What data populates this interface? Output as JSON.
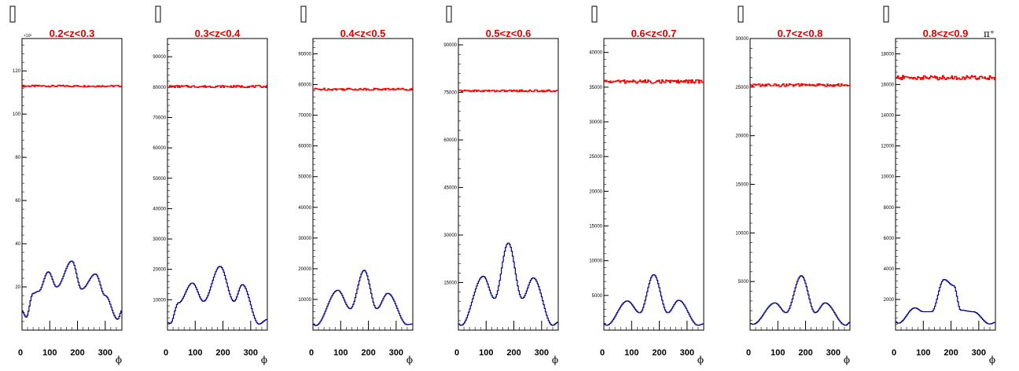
{
  "colors": {
    "flat_series": "#ff0000",
    "modulated_series": "#00008b",
    "title": "#e00000",
    "axis": "#000000"
  },
  "chart_data": [
    {
      "type": "line",
      "title": "0.2<z<0.3",
      "annotation": "",
      "multiplier": "×10³",
      "xlabel": "ϕ",
      "xlim": [
        0,
        360
      ],
      "ylim": [
        0,
        135
      ],
      "x_ticks": [
        "0",
        "100",
        "200",
        "300"
      ],
      "y_ticks": [
        {
          "v": 20,
          "t": "20"
        },
        {
          "v": 40,
          "t": "40"
        },
        {
          "v": 60,
          "t": "60"
        },
        {
          "v": 80,
          "t": "80"
        },
        {
          "v": 100,
          "t": "100"
        },
        {
          "v": 120,
          "t": "120"
        }
      ],
      "series": [
        {
          "kind": "flat",
          "values_x": [
            0,
            360
          ],
          "values_y": [
            113,
            113
          ],
          "noise": 0.4
        },
        {
          "kind": "modulated",
          "values_x": [
            0,
            15,
            40,
            60,
            95,
            125,
            180,
            215,
            265,
            300,
            345,
            360
          ],
          "values_y": [
            9,
            6,
            17,
            18,
            27,
            20,
            32,
            19,
            26,
            16,
            5,
            9
          ]
        }
      ]
    },
    {
      "type": "line",
      "title": "0.3<z<0.4",
      "annotation": "",
      "multiplier": "",
      "xlabel": "ϕ",
      "xlim": [
        0,
        360
      ],
      "ylim": [
        0,
        96000
      ],
      "x_ticks": [
        "0",
        "100",
        "200",
        "300"
      ],
      "y_ticks": [
        {
          "v": 10000,
          "t": "10000"
        },
        {
          "v": 20000,
          "t": "20000"
        },
        {
          "v": 30000,
          "t": "30000"
        },
        {
          "v": 40000,
          "t": "40000"
        },
        {
          "v": 50000,
          "t": "50000"
        },
        {
          "v": 60000,
          "t": "60000"
        },
        {
          "v": 70000,
          "t": "70000"
        },
        {
          "v": 80000,
          "t": "80000"
        },
        {
          "v": 90000,
          "t": "90000"
        }
      ],
      "series": [
        {
          "kind": "flat",
          "values_x": [
            0,
            360
          ],
          "values_y": [
            80200,
            80200
          ],
          "noise": 350
        },
        {
          "kind": "modulated",
          "values_x": [
            0,
            10,
            40,
            90,
            130,
            190,
            240,
            270,
            330,
            360
          ],
          "values_y": [
            2500,
            2200,
            9000,
            15500,
            9500,
            21000,
            9500,
            15000,
            2000,
            3500
          ]
        }
      ]
    },
    {
      "type": "line",
      "title": "0.4<z<0.5",
      "annotation": "",
      "multiplier": "",
      "xlabel": "ϕ",
      "xlim": [
        0,
        360
      ],
      "ylim": [
        0,
        95000
      ],
      "x_ticks": [
        "0",
        "100",
        "200",
        "300"
      ],
      "y_ticks": [
        {
          "v": 10000,
          "t": "10000"
        },
        {
          "v": 20000,
          "t": "20000"
        },
        {
          "v": 30000,
          "t": "30000"
        },
        {
          "v": 40000,
          "t": "40000"
        },
        {
          "v": 50000,
          "t": "50000"
        },
        {
          "v": 60000,
          "t": "60000"
        },
        {
          "v": 70000,
          "t": "70000"
        },
        {
          "v": 80000,
          "t": "80000"
        },
        {
          "v": 90000,
          "t": "90000"
        }
      ],
      "series": [
        {
          "kind": "flat",
          "values_x": [
            0,
            360
          ],
          "values_y": [
            78500,
            78500
          ],
          "noise": 350
        },
        {
          "kind": "modulated",
          "values_x": [
            0,
            10,
            90,
            135,
            185,
            230,
            270,
            340,
            360
          ],
          "values_y": [
            2000,
            1500,
            13000,
            7000,
            19500,
            7000,
            12000,
            1800,
            2000
          ]
        }
      ]
    },
    {
      "type": "line",
      "title": "0.5<z<0.6",
      "annotation": "",
      "multiplier": "",
      "xlabel": "ϕ",
      "xlim": [
        0,
        360
      ],
      "ylim": [
        0,
        92000
      ],
      "x_ticks": [
        "0",
        "100",
        "200",
        "300"
      ],
      "y_ticks": [
        {
          "v": 15000,
          "t": "15000"
        },
        {
          "v": 30000,
          "t": "30000"
        },
        {
          "v": 45000,
          "t": "45000"
        },
        {
          "v": 60000,
          "t": "60000"
        },
        {
          "v": 75000,
          "t": "75000"
        },
        {
          "v": 90000,
          "t": "90000"
        }
      ],
      "series": [
        {
          "kind": "flat",
          "values_x": [
            0,
            360
          ],
          "values_y": [
            75500,
            75500
          ],
          "noise": 300
        },
        {
          "kind": "modulated",
          "values_x": [
            0,
            10,
            90,
            130,
            180,
            230,
            270,
            340,
            360
          ],
          "values_y": [
            2000,
            1500,
            17000,
            10000,
            27500,
            10000,
            16500,
            1500,
            2500
          ]
        }
      ]
    },
    {
      "type": "line",
      "title": "0.6<z<0.7",
      "annotation": "",
      "multiplier": "",
      "xlabel": "ϕ",
      "xlim": [
        0,
        360
      ],
      "ylim": [
        0,
        42000
      ],
      "x_ticks": [
        "0",
        "100",
        "200",
        "300"
      ],
      "y_ticks": [
        {
          "v": 5000,
          "t": "5000"
        },
        {
          "v": 10000,
          "t": "10000"
        },
        {
          "v": 15000,
          "t": "15000"
        },
        {
          "v": 20000,
          "t": "20000"
        },
        {
          "v": 25000,
          "t": "25000"
        },
        {
          "v": 30000,
          "t": "30000"
        },
        {
          "v": 35000,
          "t": "35000"
        },
        {
          "v": 40000,
          "t": "40000"
        }
      ],
      "series": [
        {
          "kind": "flat",
          "values_x": [
            0,
            360
          ],
          "values_y": [
            35800,
            35800
          ],
          "noise": 250
        },
        {
          "kind": "modulated",
          "values_x": [
            0,
            10,
            85,
            130,
            180,
            230,
            270,
            340,
            360
          ],
          "values_y": [
            900,
            700,
            4200,
            2500,
            8000,
            2500,
            4300,
            700,
            900
          ]
        }
      ]
    },
    {
      "type": "line",
      "title": "0.7<z<0.8",
      "annotation": "",
      "multiplier": "",
      "xlabel": "ϕ",
      "xlim": [
        0,
        360
      ],
      "ylim": [
        0,
        30000
      ],
      "x_ticks": [
        "0",
        "100",
        "200",
        "300"
      ],
      "y_ticks": [
        {
          "v": 5000,
          "t": "5000"
        },
        {
          "v": 10000,
          "t": "10000"
        },
        {
          "v": 15000,
          "t": "15000"
        },
        {
          "v": 20000,
          "t": "20000"
        },
        {
          "v": 25000,
          "t": "25000"
        },
        {
          "v": 30000,
          "t": "30000"
        }
      ],
      "series": [
        {
          "kind": "flat",
          "values_x": [
            0,
            360
          ],
          "values_y": [
            25200,
            25200
          ],
          "noise": 150
        },
        {
          "kind": "modulated",
          "values_x": [
            0,
            10,
            90,
            130,
            185,
            235,
            270,
            345,
            360
          ],
          "values_y": [
            700,
            600,
            2800,
            1800,
            5600,
            1800,
            2800,
            500,
            800
          ]
        }
      ]
    },
    {
      "type": "line",
      "title": "0.8<z<0.9",
      "annotation": "π⁺",
      "multiplier": "",
      "xlabel": "ϕ",
      "xlim": [
        0,
        360
      ],
      "ylim": [
        0,
        19000
      ],
      "x_ticks": [
        "0",
        "100",
        "200",
        "300"
      ],
      "y_ticks": [
        {
          "v": 2000,
          "t": "2000"
        },
        {
          "v": 4000,
          "t": "4000"
        },
        {
          "v": 6000,
          "t": "6000"
        },
        {
          "v": 8000,
          "t": "8000"
        },
        {
          "v": 10000,
          "t": "10000"
        },
        {
          "v": 12000,
          "t": "12000"
        },
        {
          "v": 14000,
          "t": "14000"
        },
        {
          "v": 16000,
          "t": "16000"
        },
        {
          "v": 18000,
          "t": "18000"
        }
      ],
      "series": [
        {
          "kind": "flat",
          "values_x": [
            0,
            360
          ],
          "values_y": [
            16450,
            16450
          ],
          "noise": 150
        },
        {
          "kind": "modulated",
          "values_x": [
            0,
            10,
            70,
            100,
            130,
            175,
            210,
            235,
            280,
            340,
            360
          ],
          "values_y": [
            550,
            450,
            1450,
            1200,
            1200,
            3300,
            2900,
            1300,
            1200,
            400,
            500
          ]
        }
      ]
    }
  ]
}
